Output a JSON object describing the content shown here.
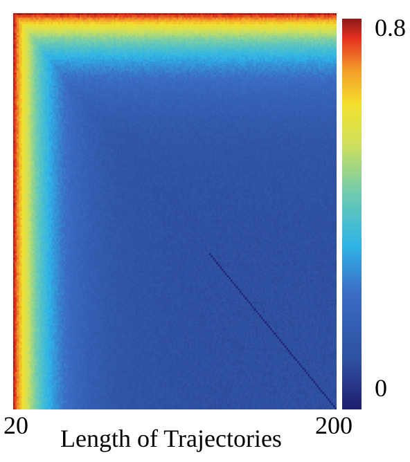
{
  "chart_data": {
    "type": "heatmap",
    "xlabel": "Length of Trajectories",
    "x_range": [
      20,
      200
    ],
    "x_tick_labels": [
      "20",
      "200"
    ],
    "colorbar": {
      "range": [
        0,
        0.8
      ],
      "tick_labels": [
        "0.8",
        "0"
      ],
      "colormap": "jet"
    },
    "grid_size": 180,
    "pattern": {
      "description_values": "Pairwise matrix over trajectory lengths 20 to 200; values near 0.8 where either length is near 20, decaying to about 0.1 when both lengths are large; minimum along the diagonal at long lengths",
      "edge_value": 0.78,
      "interior_value": 0.1,
      "decay_length_steps": 40,
      "diagonal_value": 0.02
    }
  }
}
